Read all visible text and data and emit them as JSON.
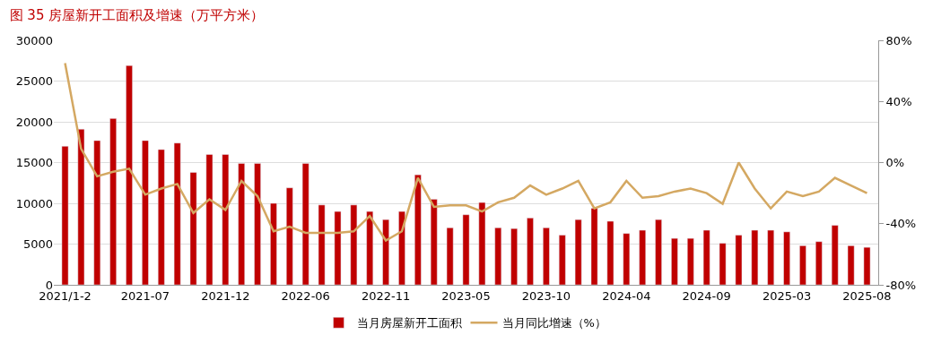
{
  "chart_data": {
    "type": "bar",
    "title": "图 35 房屋新开工面积及增速（万平方米）",
    "categories": [
      "2021/1-2",
      null,
      null,
      null,
      null,
      "2021-07",
      null,
      null,
      null,
      null,
      "2021-12",
      null,
      null,
      null,
      null,
      "2022-06",
      null,
      null,
      null,
      null,
      "2022-11",
      null,
      null,
      null,
      null,
      "2023-05",
      null,
      null,
      null,
      null,
      "2023-10",
      null,
      null,
      null,
      null,
      "2024-04",
      null,
      null,
      null,
      null,
      "2024-09",
      null,
      null,
      null,
      null,
      "2025-03",
      null,
      null,
      null,
      null,
      "2025-08"
    ],
    "series": [
      {
        "name": "当月房屋新开工面积",
        "color": "#c00000",
        "values": [
          17000,
          19100,
          17700,
          20400,
          26900,
          17700,
          16600,
          17400,
          13800,
          16000,
          16000,
          14900,
          14900,
          10000,
          11900,
          14900,
          9800,
          9000,
          9800,
          9000,
          8000,
          9000,
          13500,
          10500,
          7000,
          8600,
          10100,
          7000,
          6900,
          8200,
          7000,
          6100,
          8000,
          9400,
          7800,
          6300,
          6700,
          8000,
          5700,
          5700,
          6700,
          5100,
          6100,
          6700,
          6700,
          6500,
          4800,
          5300,
          7300,
          4800,
          4600
        ]
      },
      {
        "name": "当月同比增速（%）",
        "type": "line",
        "axis": "y2",
        "color": "#d4a862",
        "values": [
          65,
          9,
          -9,
          -6,
          -4,
          -21,
          -17,
          -14,
          -33,
          -24,
          -31,
          -12,
          -22,
          -45,
          -42,
          -46,
          -46,
          -46,
          -45,
          -35,
          -51,
          -45,
          -10,
          -29,
          -28,
          -28,
          -32,
          -26,
          -23,
          -15,
          -21,
          -17,
          -12,
          -30,
          -26,
          -12,
          -23,
          -22,
          -19,
          -17,
          -20,
          -27,
          0,
          -17,
          -30,
          -19,
          -22,
          -19,
          -10,
          -15,
          -20
        ]
      }
    ],
    "ylim": [
      0,
      30000
    ],
    "yticks": [
      0,
      5000,
      10000,
      15000,
      20000,
      25000,
      30000
    ],
    "y2lim": [
      -80,
      80
    ],
    "y2ticks": [
      {
        "value": -80,
        "label": "-80%"
      },
      {
        "value": -40,
        "label": "-40%"
      },
      {
        "value": 0,
        "label": "0%"
      },
      {
        "value": 40,
        "label": "40%"
      },
      {
        "value": 80,
        "label": "80%"
      }
    ],
    "grid": "y",
    "legend": "bottom",
    "marker": "none",
    "line_style": "solid"
  }
}
